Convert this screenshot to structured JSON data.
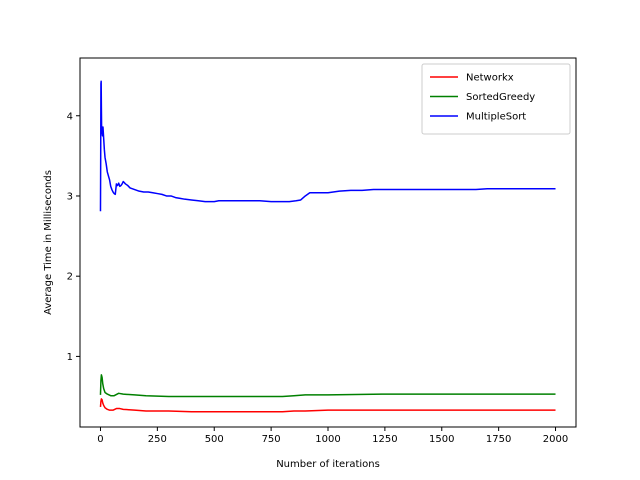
{
  "chart_data": {
    "type": "line",
    "title": "",
    "xlabel": "Number of iterations",
    "ylabel": "Average Time in Milliseconds",
    "xlim": [
      -90,
      2090
    ],
    "ylim": [
      0.12,
      4.72
    ],
    "xticks": [
      0,
      250,
      500,
      750,
      1000,
      1250,
      1500,
      1750,
      2000
    ],
    "yticks": [
      1,
      2,
      3,
      4
    ],
    "grid": false,
    "legend_position": "top-right",
    "series": [
      {
        "name": "Networkx",
        "color": "#ff0000",
        "x": [
          0,
          2,
          4,
          7,
          10,
          14,
          20,
          30,
          40,
          55,
          70,
          85,
          100,
          150,
          200,
          300,
          400,
          500,
          600,
          700,
          800,
          850,
          900,
          1000,
          1100,
          1250,
          1500,
          1750,
          2000
        ],
        "y": [
          0.37,
          0.44,
          0.47,
          0.46,
          0.42,
          0.39,
          0.36,
          0.34,
          0.33,
          0.33,
          0.35,
          0.35,
          0.34,
          0.33,
          0.32,
          0.32,
          0.31,
          0.31,
          0.31,
          0.31,
          0.31,
          0.32,
          0.32,
          0.33,
          0.33,
          0.33,
          0.33,
          0.33,
          0.33
        ]
      },
      {
        "name": "SortedGreedy",
        "color": "#008000",
        "x": [
          0,
          2,
          4,
          7,
          10,
          14,
          20,
          30,
          45,
          60,
          80,
          100,
          150,
          200,
          300,
          400,
          500,
          600,
          700,
          800,
          850,
          900,
          1000,
          1250,
          1500,
          1750,
          2000
        ],
        "y": [
          0.52,
          0.7,
          0.77,
          0.74,
          0.66,
          0.6,
          0.55,
          0.53,
          0.51,
          0.51,
          0.54,
          0.53,
          0.52,
          0.51,
          0.5,
          0.5,
          0.5,
          0.5,
          0.5,
          0.5,
          0.51,
          0.52,
          0.52,
          0.53,
          0.53,
          0.53,
          0.53
        ]
      },
      {
        "name": "MultipleSort",
        "color": "#0000ff",
        "x": [
          0,
          1,
          2,
          3,
          4,
          5,
          6,
          7,
          9,
          11,
          14,
          17,
          20,
          25,
          30,
          35,
          40,
          45,
          50,
          55,
          60,
          65,
          70,
          75,
          80,
          85,
          90,
          95,
          100,
          110,
          120,
          130,
          150,
          170,
          190,
          210,
          230,
          250,
          270,
          290,
          310,
          330,
          350,
          370,
          400,
          430,
          460,
          500,
          520,
          550,
          600,
          650,
          700,
          750,
          800,
          830,
          860,
          880,
          900,
          920,
          950,
          1000,
          1050,
          1100,
          1150,
          1200,
          1250,
          1300,
          1350,
          1400,
          1450,
          1500,
          1550,
          1600,
          1650,
          1700,
          1750,
          1800,
          1850,
          1900,
          1950,
          2000
        ],
        "y": [
          2.81,
          3.5,
          4.4,
          4.43,
          4.1,
          3.85,
          3.78,
          3.8,
          3.75,
          3.86,
          3.72,
          3.58,
          3.48,
          3.4,
          3.3,
          3.25,
          3.2,
          3.12,
          3.08,
          3.05,
          3.03,
          3.02,
          3.15,
          3.13,
          3.16,
          3.12,
          3.13,
          3.15,
          3.18,
          3.15,
          3.13,
          3.1,
          3.08,
          3.06,
          3.05,
          3.05,
          3.04,
          3.03,
          3.02,
          3.0,
          3.0,
          2.98,
          2.97,
          2.96,
          2.95,
          2.94,
          2.93,
          2.93,
          2.94,
          2.94,
          2.94,
          2.94,
          2.94,
          2.93,
          2.93,
          2.93,
          2.94,
          2.95,
          3.0,
          3.04,
          3.04,
          3.04,
          3.06,
          3.07,
          3.07,
          3.08,
          3.08,
          3.08,
          3.08,
          3.08,
          3.08,
          3.08,
          3.08,
          3.08,
          3.08,
          3.09,
          3.09,
          3.09,
          3.09,
          3.09,
          3.09,
          3.09
        ]
      }
    ]
  }
}
